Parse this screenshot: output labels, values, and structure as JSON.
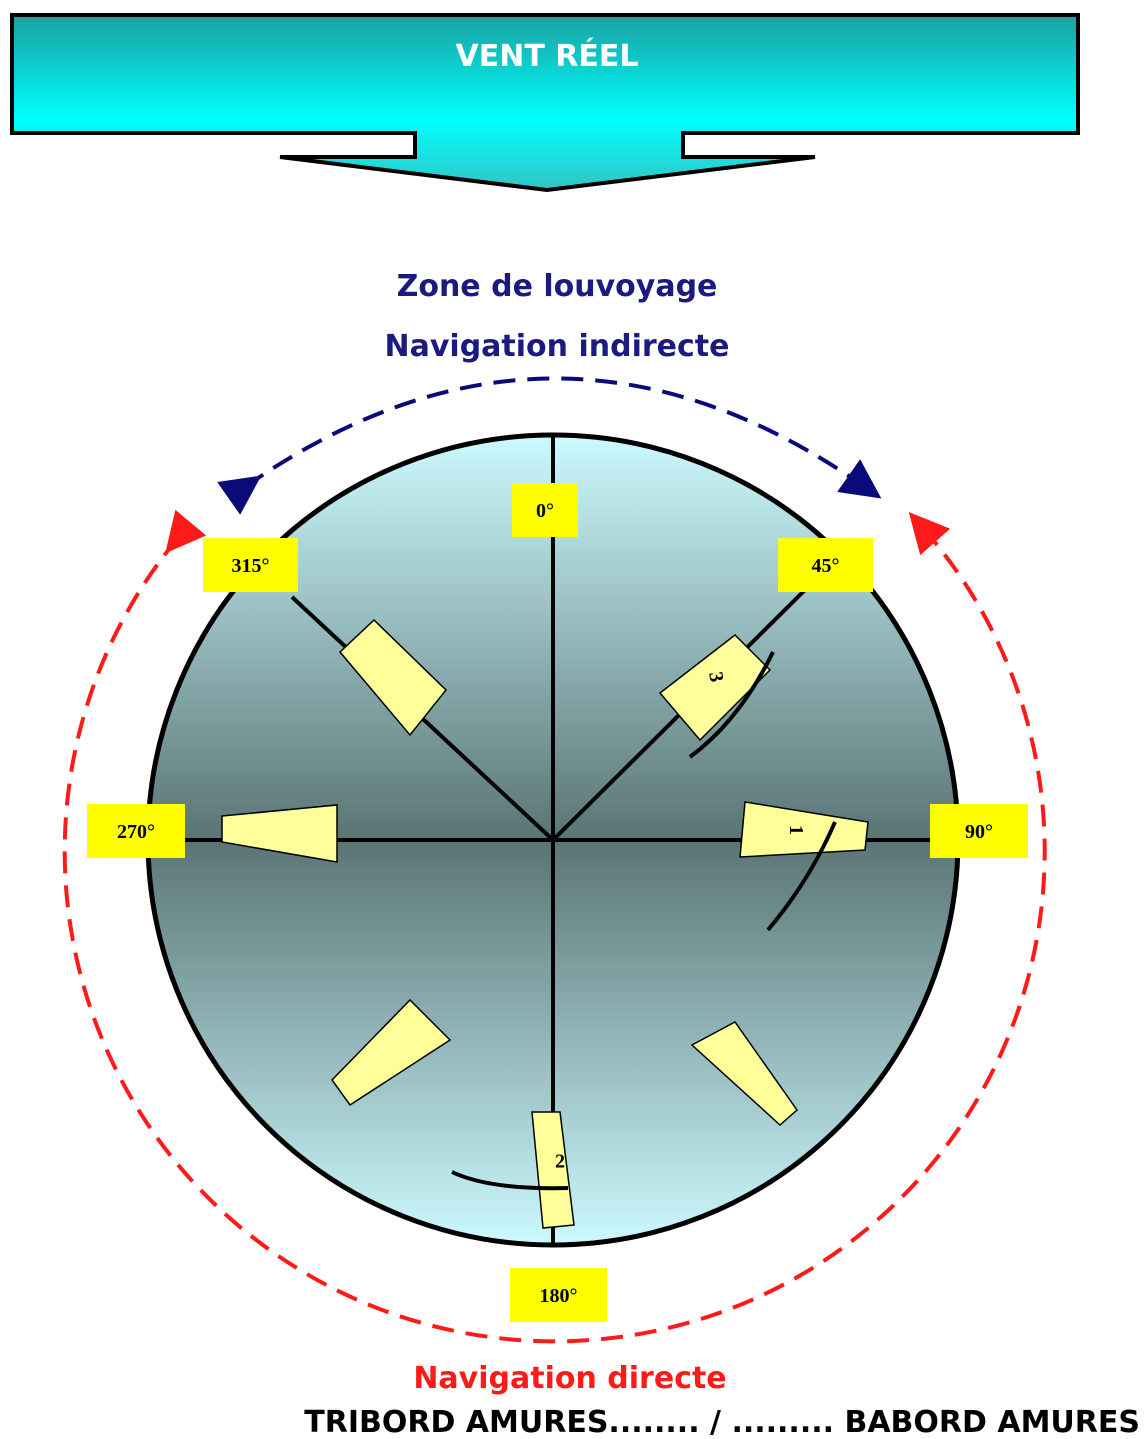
{
  "header": {
    "title": "VENT RÉEL"
  },
  "zones": {
    "indirect": [
      "Zone de louvoyage",
      "Navigation indirecte"
    ],
    "direct": "Navigation directe"
  },
  "angles": [
    "0°",
    "45°",
    "90°",
    "180°",
    "270°",
    "315°"
  ],
  "boats": [
    "1",
    "2",
    "3"
  ],
  "footer": "TRIBORD AMURES........ / ......... BABORD AMURES"
}
